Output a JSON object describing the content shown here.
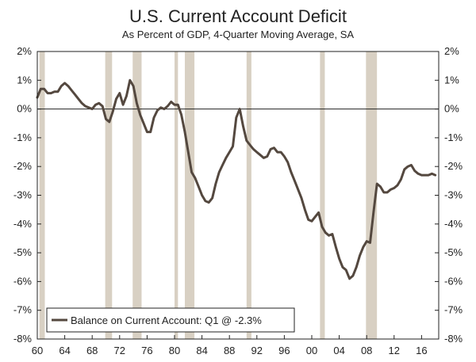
{
  "chart_data": {
    "type": "line",
    "title": "U.S. Current Account Deficit",
    "subtitle": "As Percent of GDP, 4-Quarter Moving Average, SA",
    "xlabel": "",
    "ylabel": "",
    "xlim": [
      1960,
      2018.5
    ],
    "ylim": [
      -8,
      2
    ],
    "x_ticks": [
      1960,
      1964,
      1968,
      1972,
      1976,
      1980,
      1984,
      1988,
      1992,
      1996,
      2000,
      2004,
      2008,
      2012,
      2016
    ],
    "x_tick_labels": [
      "60",
      "64",
      "68",
      "72",
      "76",
      "80",
      "84",
      "88",
      "92",
      "96",
      "00",
      "04",
      "08",
      "12",
      "16"
    ],
    "y_ticks": [
      2,
      1,
      0,
      -1,
      -2,
      -3,
      -4,
      -5,
      -6,
      -7,
      -8
    ],
    "y_tick_labels": [
      "2%",
      "1%",
      "0%",
      "-1%",
      "-2%",
      "-3%",
      "-4%",
      "-5%",
      "-6%",
      "-7%",
      "-8%"
    ],
    "grid": false,
    "zero_line": true,
    "line_color": "#54483f",
    "recession_color": "#d8d0c3",
    "recessions": [
      [
        1960.3,
        1961.1
      ],
      [
        1969.9,
        1970.9
      ],
      [
        1973.9,
        1975.2
      ],
      [
        1980.0,
        1980.5
      ],
      [
        1981.5,
        1982.9
      ],
      [
        1990.5,
        1991.2
      ],
      [
        2001.2,
        2001.9
      ],
      [
        2007.9,
        2009.5
      ]
    ],
    "legend_position": "bottom-left",
    "series": [
      {
        "name": "Balance on Current Account: Q1 @ -2.3%",
        "x": [
          1960.0,
          1960.5,
          1961.0,
          1961.5,
          1962.0,
          1962.5,
          1963.0,
          1963.5,
          1964.0,
          1964.5,
          1965.0,
          1965.5,
          1966.0,
          1966.5,
          1967.0,
          1967.5,
          1968.0,
          1968.5,
          1969.0,
          1969.5,
          1970.0,
          1970.5,
          1971.0,
          1971.5,
          1972.0,
          1972.5,
          1973.0,
          1973.5,
          1974.0,
          1974.5,
          1975.0,
          1975.5,
          1976.0,
          1976.5,
          1977.0,
          1977.5,
          1978.0,
          1978.5,
          1979.0,
          1979.5,
          1980.0,
          1980.5,
          1981.0,
          1981.5,
          1982.0,
          1982.5,
          1983.0,
          1983.5,
          1984.0,
          1984.5,
          1985.0,
          1985.5,
          1986.0,
          1986.5,
          1987.0,
          1987.5,
          1988.0,
          1988.5,
          1989.0,
          1989.5,
          1990.0,
          1990.5,
          1991.0,
          1991.5,
          1992.0,
          1992.5,
          1993.0,
          1993.5,
          1994.0,
          1994.5,
          1995.0,
          1995.5,
          1996.0,
          1996.5,
          1997.0,
          1997.5,
          1998.0,
          1998.5,
          1999.0,
          1999.5,
          2000.0,
          2000.5,
          2001.0,
          2001.5,
          2002.0,
          2002.5,
          2003.0,
          2003.5,
          2004.0,
          2004.5,
          2005.0,
          2005.5,
          2006.0,
          2006.5,
          2007.0,
          2007.5,
          2008.0,
          2008.5,
          2009.0,
          2009.5,
          2010.0,
          2010.5,
          2011.0,
          2011.5,
          2012.0,
          2012.5,
          2013.0,
          2013.5,
          2014.0,
          2014.5,
          2015.0,
          2015.5,
          2016.0,
          2016.5,
          2017.0,
          2017.5,
          2018.0
        ],
        "values": [
          0.4,
          0.7,
          0.7,
          0.55,
          0.55,
          0.6,
          0.6,
          0.8,
          0.9,
          0.8,
          0.65,
          0.5,
          0.35,
          0.2,
          0.1,
          0.05,
          0.0,
          0.15,
          0.2,
          0.1,
          -0.35,
          -0.45,
          -0.1,
          0.35,
          0.55,
          0.15,
          0.45,
          1.0,
          0.8,
          0.2,
          -0.2,
          -0.5,
          -0.8,
          -0.8,
          -0.3,
          -0.05,
          0.05,
          0.0,
          0.1,
          0.25,
          0.15,
          0.15,
          -0.2,
          -0.8,
          -1.5,
          -2.2,
          -2.4,
          -2.7,
          -3.0,
          -3.2,
          -3.25,
          -3.1,
          -2.6,
          -2.2,
          -1.95,
          -1.7,
          -1.5,
          -1.3,
          -0.3,
          0.0,
          -0.6,
          -1.1,
          -1.25,
          -1.4,
          -1.5,
          -1.6,
          -1.7,
          -1.65,
          -1.4,
          -1.35,
          -1.5,
          -1.5,
          -1.65,
          -1.85,
          -2.2,
          -2.5,
          -2.8,
          -3.1,
          -3.5,
          -3.85,
          -3.9,
          -3.75,
          -3.6,
          -4.1,
          -4.3,
          -4.4,
          -4.35,
          -4.8,
          -5.2,
          -5.5,
          -5.6,
          -5.9,
          -5.8,
          -5.5,
          -5.1,
          -4.8,
          -4.6,
          -4.65,
          -3.6,
          -2.6,
          -2.7,
          -2.9,
          -2.9,
          -2.8,
          -2.75,
          -2.65,
          -2.45,
          -2.1,
          -2.0,
          -1.95,
          -2.15,
          -2.25,
          -2.3,
          -2.3,
          -2.3,
          -2.25,
          -2.3
        ]
      }
    ]
  }
}
